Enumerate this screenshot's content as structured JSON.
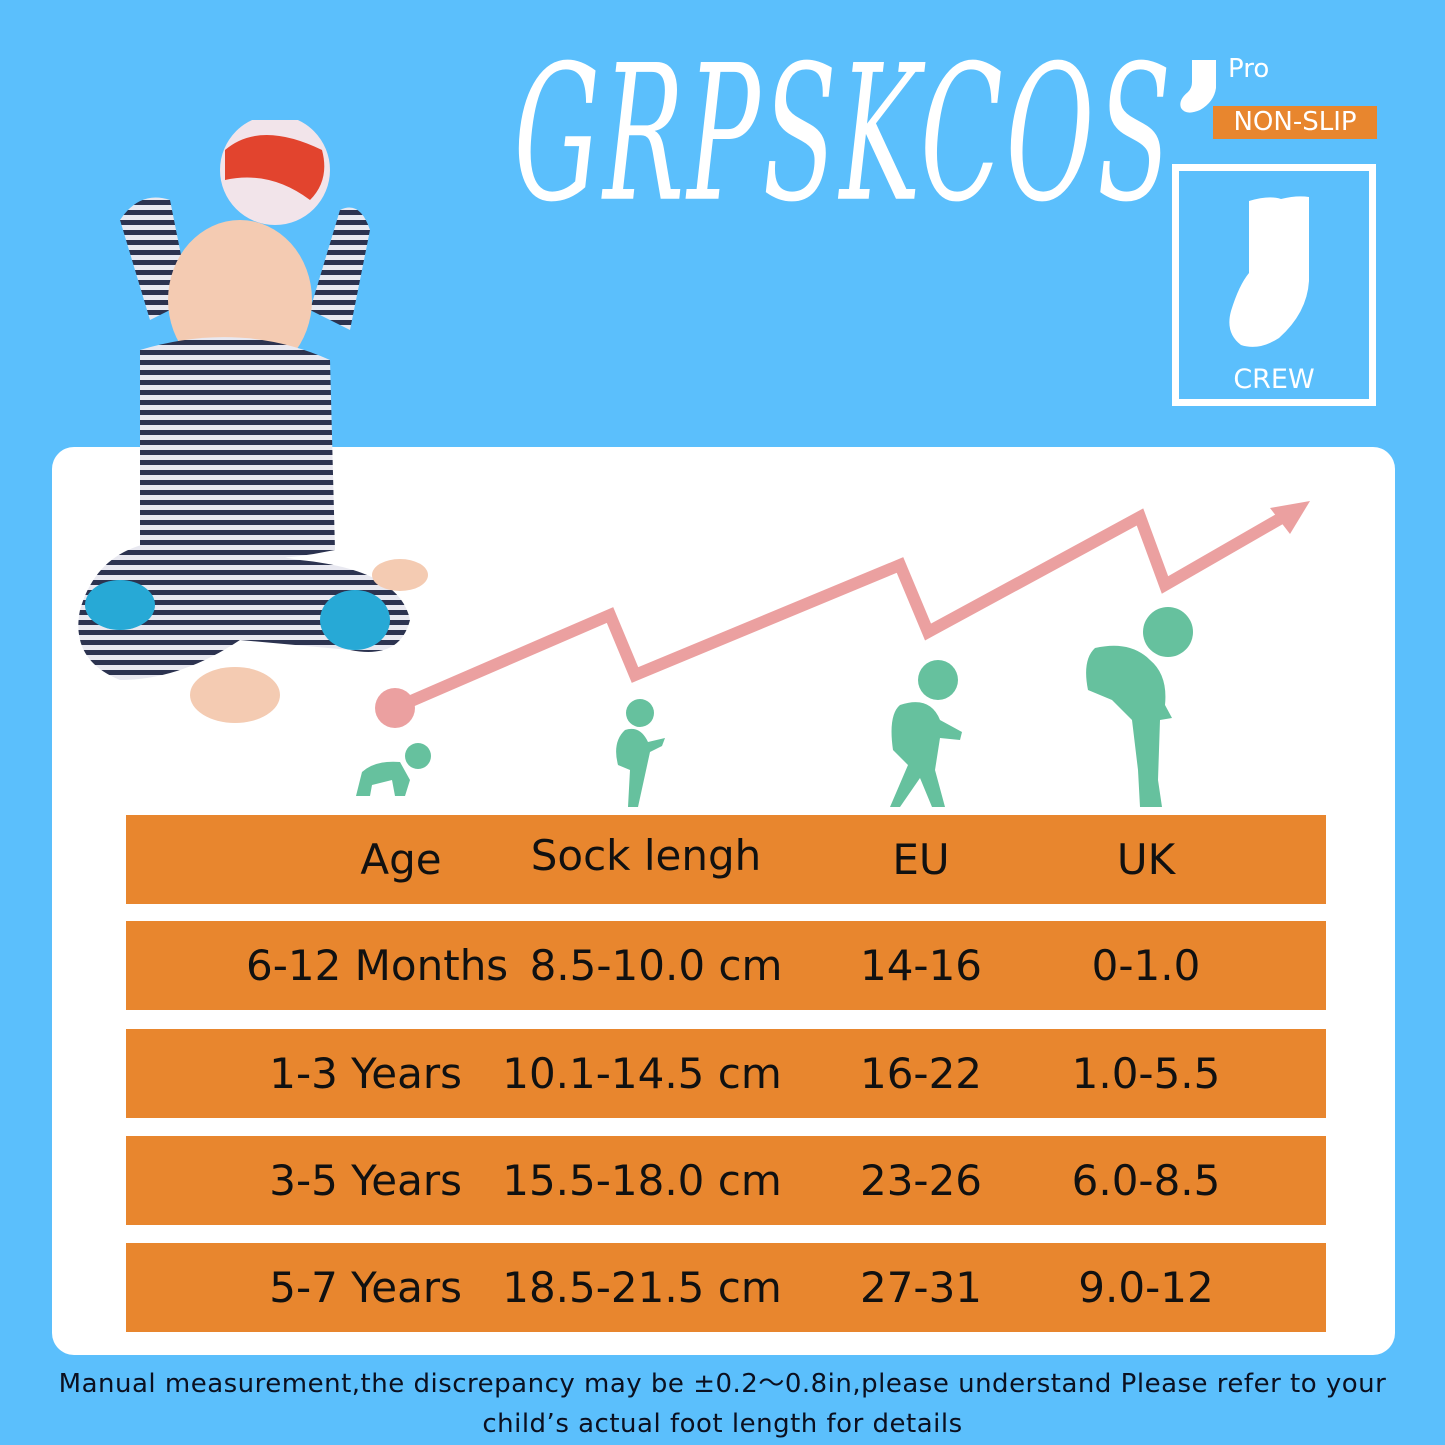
{
  "brand": "GRPSKCOS",
  "badge": {
    "pro": "Pro",
    "non_slip": "NON-SLIP",
    "style": "CREW"
  },
  "colors": {
    "background": "#5bbffc",
    "orange": "#e8862e",
    "growth_line": "#eba0a0",
    "figures": "#66c19e"
  },
  "icons": [
    "baby-photo",
    "sock-icon",
    "crawling-baby-icon",
    "toddler-icon",
    "child-icon",
    "schoolchild-icon",
    "growth-arrow"
  ],
  "table": {
    "headers": [
      "Age",
      "Sock lengh",
      "EU",
      "UK"
    ],
    "rows": [
      [
        "6-12 Months",
        "8.5-10.0 cm",
        "14-16",
        "0-1.0"
      ],
      [
        "1-3 Years",
        "10.1-14.5 cm",
        "16-22",
        "1.0-5.5"
      ],
      [
        "3-5 Years",
        "15.5-18.0 cm",
        "23-26",
        "6.0-8.5"
      ],
      [
        "5-7 Years",
        "18.5-21.5 cm",
        "27-31",
        "9.0-12"
      ]
    ]
  },
  "note": "Manual measurement,the discrepancy may be ±0.2～0.8in,please understand Please refer to your child’s actual foot length for details"
}
